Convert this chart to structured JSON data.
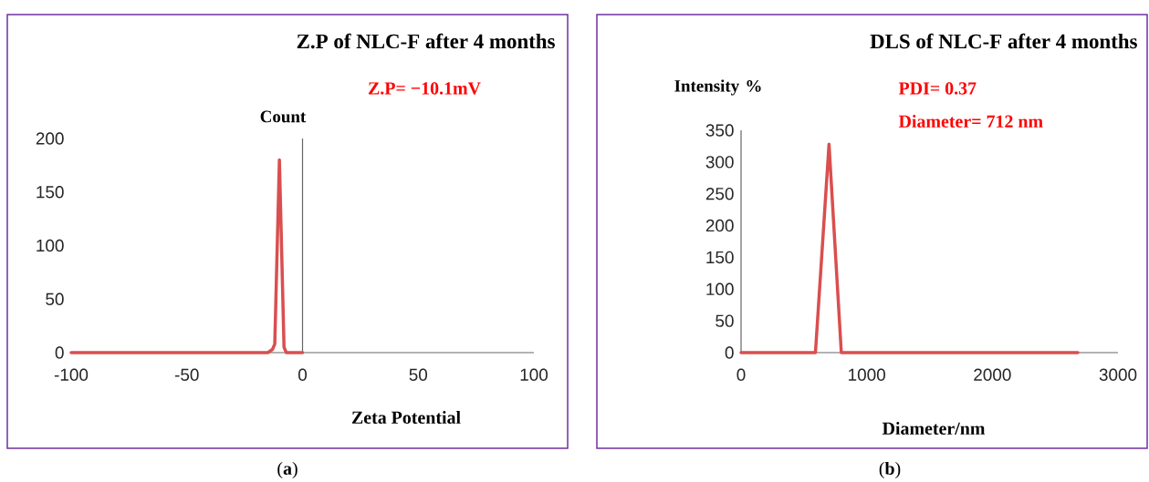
{
  "chart_data": [
    {
      "type": "line",
      "title": "Z.P of  NLC-F after 4 months",
      "xlabel": "Zeta Potential",
      "ylabel": "Count",
      "x": [
        -100,
        -15,
        -13,
        -12,
        -10,
        -8,
        -7,
        0
      ],
      "values": [
        0,
        0,
        3,
        8,
        180,
        5,
        0,
        0
      ],
      "color": "#d94f4f",
      "xlim": [
        -100,
        100
      ],
      "ylim": [
        0,
        200
      ],
      "xticks": [
        -100,
        -50,
        0,
        50,
        100
      ],
      "yticks": [
        0,
        50,
        100,
        150,
        200
      ],
      "annotations": [
        "Z.P= −10.1mV",
        "(**a**)"
      ]
    },
    {
      "type": "line",
      "title": "DLS of NLC-F after 4 months",
      "xlabel": "Diameter/nm",
      "ylabel": "Intensity %",
      "x": [
        0,
        592,
        700,
        798,
        2680
      ],
      "values": [
        0,
        0,
        328,
        0,
        0
      ],
      "color": "#d94f4f",
      "xlim": [
        0,
        3000
      ],
      "ylim": [
        0,
        350
      ],
      "xticks": [
        0,
        1000,
        2000,
        3000
      ],
      "yticks": [
        0,
        50,
        100,
        150,
        200,
        250,
        300,
        350
      ],
      "annotations": [
        "PDI= 0.37",
        "Diameter= 712 nm",
        "(**b**)"
      ]
    }
  ]
}
